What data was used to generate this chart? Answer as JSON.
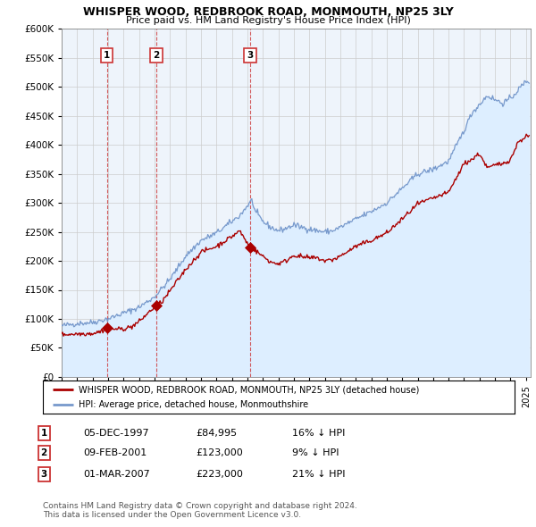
{
  "title": "WHISPER WOOD, REDBROOK ROAD, MONMOUTH, NP25 3LY",
  "subtitle": "Price paid vs. HM Land Registry's House Price Index (HPI)",
  "ylim": [
    0,
    600000
  ],
  "yticks": [
    0,
    50000,
    100000,
    150000,
    200000,
    250000,
    300000,
    350000,
    400000,
    450000,
    500000,
    550000,
    600000
  ],
  "xlim_start": 1995.0,
  "xlim_end": 2025.3,
  "xtick_years": [
    1995,
    1996,
    1997,
    1998,
    1999,
    2000,
    2001,
    2002,
    2003,
    2004,
    2005,
    2006,
    2007,
    2008,
    2009,
    2010,
    2011,
    2012,
    2013,
    2014,
    2015,
    2016,
    2017,
    2018,
    2019,
    2020,
    2021,
    2022,
    2023,
    2024,
    2025
  ],
  "sale_color": "#aa0000",
  "hpi_color": "#7799cc",
  "hpi_fill_color": "#ddeeff",
  "chart_bg": "#eef4fb",
  "sale_points": [
    {
      "year": 1997.92,
      "price": 84995,
      "label": "1"
    },
    {
      "year": 2001.12,
      "price": 123000,
      "label": "2"
    },
    {
      "year": 2007.17,
      "price": 223000,
      "label": "3"
    }
  ],
  "vline1_color": "#aaaaaa",
  "vline_color": "#cc3333",
  "legend_entries": [
    "WHISPER WOOD, REDBROOK ROAD, MONMOUTH, NP25 3LY (detached house)",
    "HPI: Average price, detached house, Monmouthshire"
  ],
  "table_rows": [
    {
      "num": "1",
      "date": "05-DEC-1997",
      "price": "£84,995",
      "pct": "16% ↓ HPI"
    },
    {
      "num": "2",
      "date": "09-FEB-2001",
      "price": "£123,000",
      "pct": "9% ↓ HPI"
    },
    {
      "num": "3",
      "date": "01-MAR-2007",
      "price": "£223,000",
      "pct": "21% ↓ HPI"
    }
  ],
  "footnote": "Contains HM Land Registry data © Crown copyright and database right 2024.\nThis data is licensed under the Open Government Licence v3.0.",
  "background_color": "#ffffff",
  "grid_color": "#cccccc"
}
